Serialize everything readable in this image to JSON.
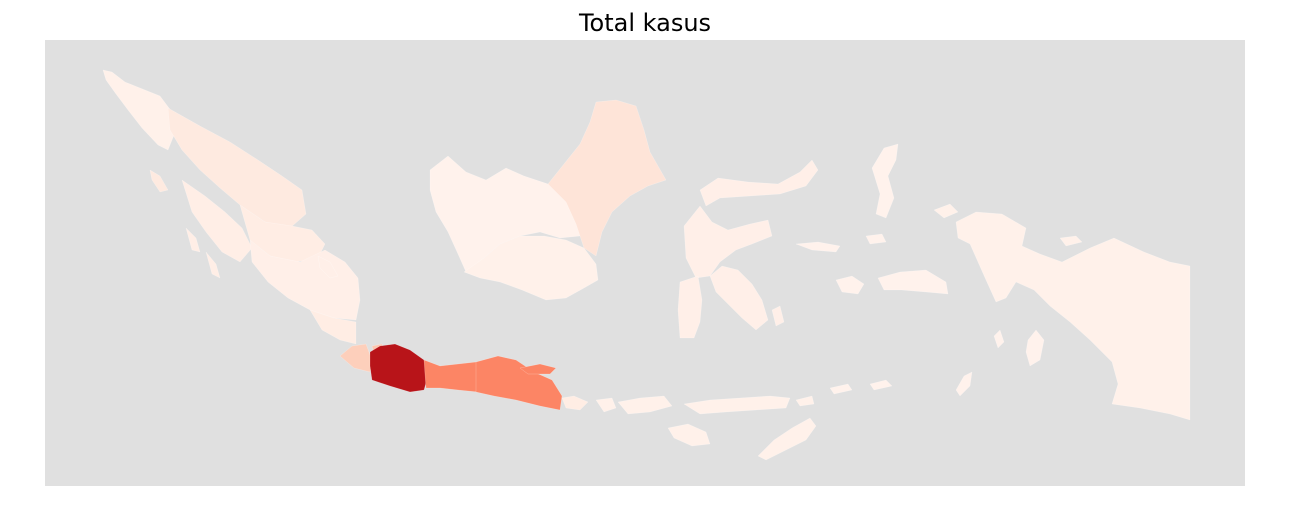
{
  "title": "Total kasus",
  "colors": {
    "ocean": "#e0e0e0",
    "scale_low": "#fff5f0",
    "scale_high": "#a50f15"
  },
  "regions": [
    {
      "id": "aceh",
      "level": 0.03
    },
    {
      "id": "north-sumatra",
      "level": 0.08
    },
    {
      "id": "west-sumatra",
      "level": 0.05
    },
    {
      "id": "riau",
      "level": 0.06
    },
    {
      "id": "jambi-south-sumatra",
      "level": 0.04
    },
    {
      "id": "lampung",
      "level": 0.06
    },
    {
      "id": "banten",
      "level": 0.22
    },
    {
      "id": "jakarta",
      "level": 0.25
    },
    {
      "id": "west-java",
      "level": 0.95
    },
    {
      "id": "central-java",
      "level": 0.5
    },
    {
      "id": "east-java",
      "level": 0.5
    },
    {
      "id": "bali",
      "level": 0.06
    },
    {
      "id": "nusa-tenggara",
      "level": 0.03
    },
    {
      "id": "west-kalimantan",
      "level": 0.02
    },
    {
      "id": "central-kalimantan",
      "level": 0.03
    },
    {
      "id": "east-kalimantan",
      "level": 0.12
    },
    {
      "id": "sulawesi",
      "level": 0.04
    },
    {
      "id": "maluku",
      "level": 0.02
    },
    {
      "id": "papua",
      "level": 0.03
    }
  ]
}
